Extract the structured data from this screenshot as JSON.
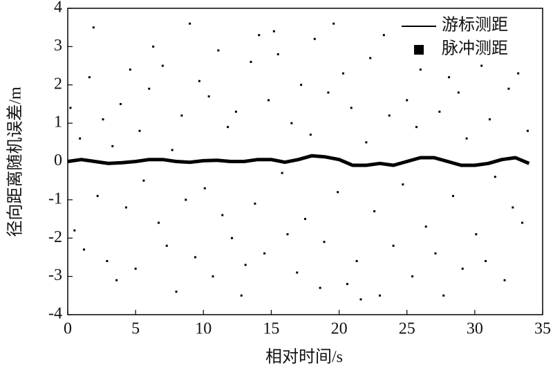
{
  "chart_data": {
    "type": "scatter",
    "x_label": "相对时间/s",
    "y_label": "径向距离随机误差/m",
    "xlim": [
      0,
      35
    ],
    "xticks": [
      0,
      5,
      10,
      15,
      20,
      25,
      30,
      35
    ],
    "ylim": [
      -4,
      4
    ],
    "yticks": [
      -4,
      -3,
      -2,
      -1,
      0,
      1,
      2,
      3,
      4
    ],
    "legend": "upper right",
    "series": [
      {
        "name": "游标测距",
        "type": "line",
        "color": "#000000",
        "x": [
          0,
          1,
          2,
          3,
          4,
          5,
          6,
          7,
          8,
          9,
          10,
          11,
          12,
          13,
          14,
          15,
          16,
          17,
          18,
          19,
          20,
          21,
          22,
          23,
          24,
          25,
          26,
          27,
          28,
          29,
          30,
          31,
          32,
          33,
          34
        ],
        "values": [
          0.0,
          0.05,
          0.0,
          -0.05,
          -0.03,
          0.0,
          0.05,
          0.05,
          0.0,
          -0.02,
          0.02,
          0.03,
          0.0,
          0.0,
          0.05,
          0.05,
          -0.02,
          0.05,
          0.15,
          0.12,
          0.05,
          -0.1,
          -0.1,
          -0.05,
          -0.1,
          0.0,
          0.1,
          0.1,
          0.0,
          -0.1,
          -0.1,
          -0.05,
          0.05,
          0.1,
          -0.05
        ]
      },
      {
        "name": "脉冲测距",
        "type": "scatter",
        "color": "#000000",
        "x": [
          0.2,
          0.5,
          0.9,
          1.2,
          1.6,
          1.9,
          2.2,
          2.6,
          2.9,
          3.3,
          3.6,
          3.9,
          4.3,
          4.6,
          5.0,
          5.3,
          5.6,
          6.0,
          6.3,
          6.7,
          7.0,
          7.3,
          7.7,
          8.0,
          8.4,
          8.7,
          9.0,
          9.4,
          9.7,
          10.1,
          10.4,
          10.7,
          11.1,
          11.4,
          11.8,
          12.1,
          12.4,
          12.8,
          13.1,
          13.5,
          13.8,
          14.1,
          14.5,
          14.8,
          15.2,
          15.5,
          15.8,
          16.2,
          16.5,
          16.9,
          17.2,
          17.5,
          17.9,
          18.2,
          18.6,
          18.9,
          19.2,
          19.6,
          19.9,
          20.3,
          20.6,
          20.9,
          21.3,
          21.6,
          22.0,
          22.3,
          22.6,
          23.0,
          23.3,
          23.7,
          24.0,
          24.3,
          24.7,
          25.0,
          25.4,
          25.7,
          26.0,
          26.4,
          26.7,
          27.1,
          27.4,
          27.7,
          28.1,
          28.4,
          28.8,
          29.1,
          29.4,
          29.8,
          30.1,
          30.5,
          30.8,
          31.1,
          31.5,
          31.8,
          32.2,
          32.5,
          32.8,
          33.2,
          33.5,
          33.9
        ],
        "values": [
          1.4,
          -1.8,
          0.6,
          -2.3,
          2.2,
          3.5,
          -0.9,
          1.1,
          -2.6,
          0.4,
          -3.1,
          1.5,
          -1.2,
          2.4,
          -2.8,
          0.8,
          -0.5,
          1.9,
          3.0,
          -1.6,
          2.5,
          -2.2,
          0.3,
          -3.4,
          1.2,
          -1.0,
          3.6,
          -2.5,
          2.1,
          -0.7,
          1.7,
          -3.0,
          2.9,
          -1.4,
          0.9,
          -2.0,
          1.3,
          -3.5,
          -2.7,
          2.6,
          -1.1,
          3.3,
          -2.4,
          1.6,
          3.4,
          2.8,
          -0.3,
          -1.9,
          1.0,
          -2.9,
          2.0,
          -1.5,
          0.7,
          3.2,
          -3.3,
          -2.1,
          1.8,
          3.6,
          -0.8,
          2.3,
          -3.2,
          1.4,
          -2.6,
          -3.6,
          0.5,
          2.7,
          -1.3,
          -3.5,
          3.3,
          1.2,
          -2.2,
          2.9,
          -0.6,
          1.6,
          -3.0,
          0.9,
          2.4,
          -1.7,
          3.1,
          -2.4,
          1.3,
          -3.5,
          2.2,
          -0.9,
          1.8,
          -2.8,
          0.6,
          3.0,
          -1.9,
          2.5,
          -2.6,
          1.1,
          -0.4,
          2.7,
          -3.1,
          1.9,
          -1.2,
          2.3,
          -1.6,
          0.8
        ]
      }
    ]
  }
}
